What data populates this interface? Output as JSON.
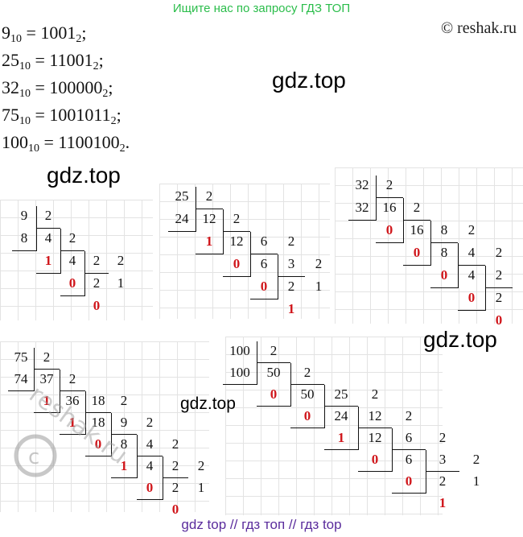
{
  "banner": "Ищите нас по запросу ГДЗ ТОП",
  "copyright": "© reshak.ru",
  "equations": [
    {
      "left": "9",
      "lsub": "10",
      "right": "1001",
      "rsub": "2",
      "end": ";"
    },
    {
      "left": "25",
      "lsub": "10",
      "right": "11001",
      "rsub": "2",
      "end": ";"
    },
    {
      "left": "32",
      "lsub": "10",
      "right": "100000",
      "rsub": "2",
      "end": ";"
    },
    {
      "left": "75",
      "lsub": "10",
      "right": "1001011",
      "rsub": "2",
      "end": ";"
    },
    {
      "left": "100",
      "lsub": "10",
      "right": "1100100",
      "rsub": "2",
      "end": "."
    }
  ],
  "watermarks": [
    "gdz.top",
    "gdz.top",
    "gdz.top",
    "gdz.top"
  ],
  "stamp_text": "reshak.ru",
  "footer": "gdz top  //  гдз топ  //  гдз top",
  "divisions": [
    {
      "name": "division-9",
      "rows": [
        [
          "9",
          "2"
        ],
        [
          "8",
          "4",
          "2"
        ],
        [
          "1",
          "4",
          "2",
          "2"
        ],
        [
          "0",
          "2",
          "1"
        ],
        [
          "0"
        ]
      ]
    },
    {
      "name": "division-25",
      "rows": [
        [
          "25",
          "2"
        ],
        [
          "24",
          "12",
          "2"
        ],
        [
          "1",
          "12",
          "6",
          "2"
        ],
        [
          "0",
          "6",
          "3",
          "2"
        ],
        [
          "0",
          "2",
          "1"
        ],
        [
          "1"
        ]
      ]
    },
    {
      "name": "division-32",
      "rows": [
        [
          "32",
          "2"
        ],
        [
          "32",
          "16",
          "2"
        ],
        [
          "0",
          "16",
          "8",
          "2"
        ],
        [
          "0",
          "8",
          "4",
          "2"
        ],
        [
          "0",
          "4",
          "2",
          "2"
        ],
        [
          "0",
          "2",
          "1"
        ],
        [
          "0"
        ]
      ]
    },
    {
      "name": "division-75",
      "rows": [
        [
          "75",
          "2"
        ],
        [
          "74",
          "37",
          "2"
        ],
        [
          "1",
          "36",
          "18",
          "2"
        ],
        [
          "1",
          "18",
          "9",
          "2"
        ],
        [
          "0",
          "8",
          "4",
          "2"
        ],
        [
          "1",
          "4",
          "2",
          "2"
        ],
        [
          "0",
          "2",
          "1"
        ],
        [
          "0"
        ]
      ]
    },
    {
      "name": "division-100",
      "rows": [
        [
          "100",
          "2"
        ],
        [
          "100",
          "50",
          "2"
        ],
        [
          "0",
          "50",
          "25",
          "2"
        ],
        [
          "0",
          "24",
          "12",
          "2"
        ],
        [
          "1",
          "12",
          "6",
          "2"
        ],
        [
          "0",
          "6",
          "3",
          "2"
        ],
        [
          "0",
          "2",
          "1"
        ],
        [
          "1"
        ]
      ]
    }
  ]
}
